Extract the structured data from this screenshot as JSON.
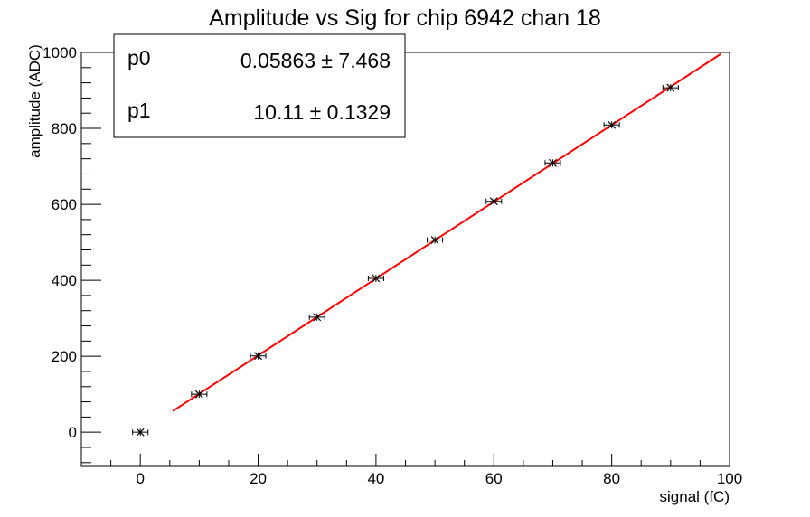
{
  "chart_data": {
    "type": "scatter",
    "title": "Amplitude vs Sig for chip 6942 chan 18",
    "xlabel": "signal (fC)",
    "ylabel": "amplitude (ADC)",
    "xlim": [
      -10,
      100
    ],
    "ylim": [
      -90,
      1000
    ],
    "x_ticks": [
      0,
      20,
      40,
      60,
      80,
      100
    ],
    "y_ticks": [
      0,
      200,
      400,
      600,
      800,
      1000
    ],
    "points": [
      {
        "x": 0,
        "y": 0,
        "xerr": 1
      },
      {
        "x": 10,
        "y": 100,
        "xerr": 1
      },
      {
        "x": 20,
        "y": 201,
        "xerr": 1
      },
      {
        "x": 30,
        "y": 303,
        "xerr": 1
      },
      {
        "x": 40,
        "y": 405,
        "xerr": 1
      },
      {
        "x": 50,
        "y": 506,
        "xerr": 1
      },
      {
        "x": 60,
        "y": 608,
        "xerr": 1
      },
      {
        "x": 70,
        "y": 709,
        "xerr": 1
      },
      {
        "x": 80,
        "y": 809,
        "xerr": 1
      },
      {
        "x": 90,
        "y": 907,
        "xerr": 1
      }
    ],
    "fit": {
      "color": "#ff0000",
      "x_range": [
        5.5,
        98.5
      ],
      "p0": 0.05863,
      "p1": 10.11
    },
    "stats": [
      {
        "name": "p0",
        "value": "0.05863 ± 7.468"
      },
      {
        "name": "p1",
        "value": "10.11 ± 0.1329"
      }
    ],
    "grid": false,
    "marker_color": "#000000"
  }
}
